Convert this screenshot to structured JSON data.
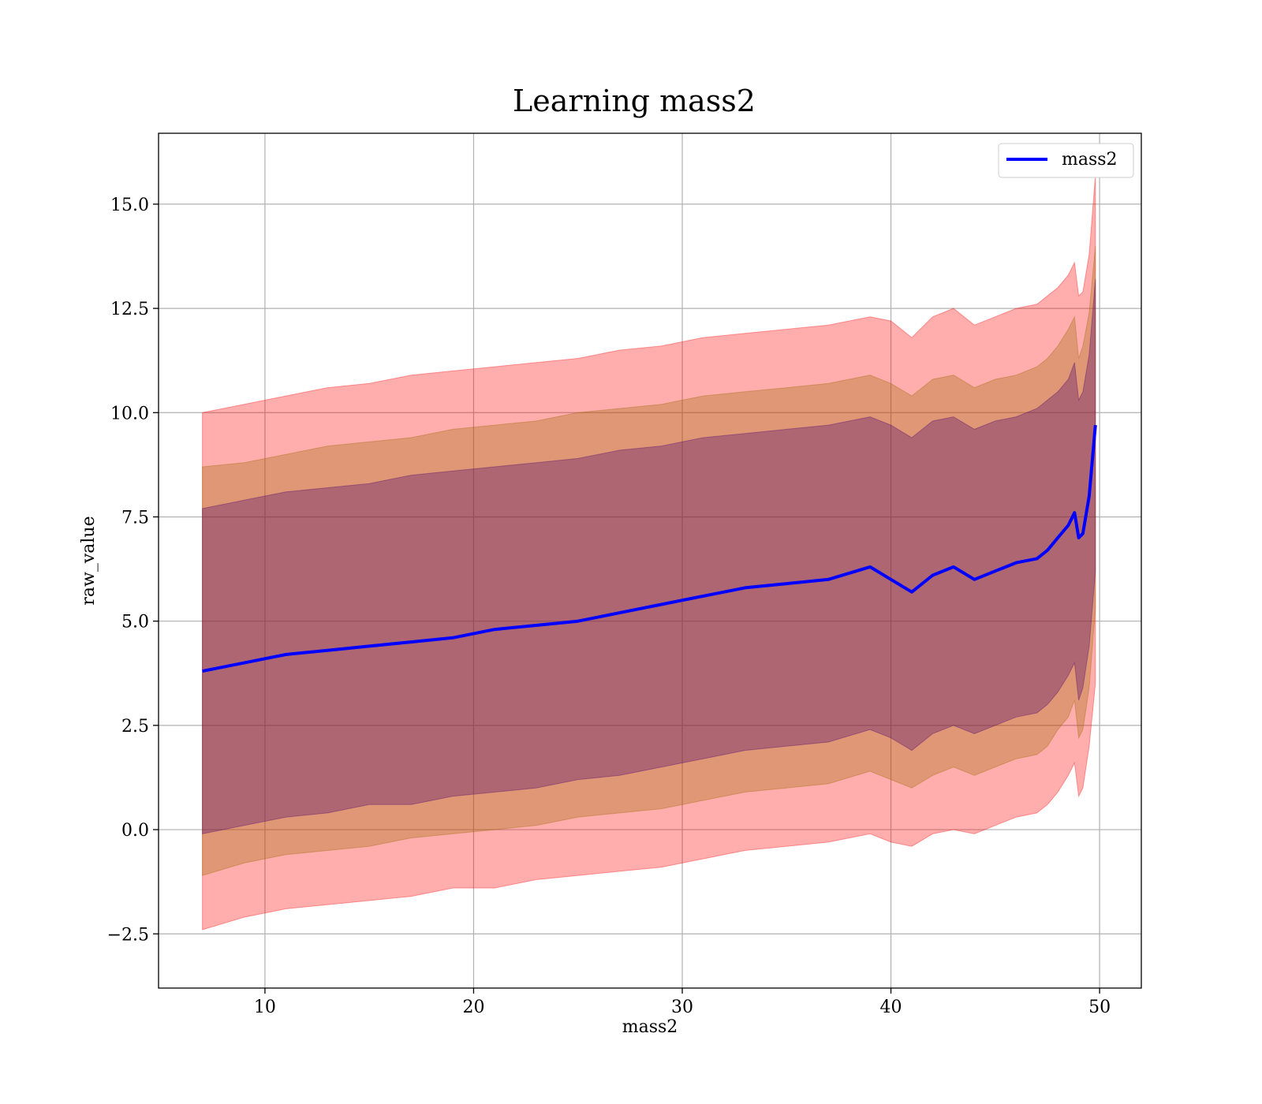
{
  "chart_data": {
    "type": "line",
    "title": "Learning mass2",
    "xlabel": "mass2",
    "ylabel": "raw_value",
    "xlim": [
      4.9,
      52.0
    ],
    "ylim": [
      -3.8,
      16.7
    ],
    "x_ticks": [
      10,
      20,
      30,
      40,
      50
    ],
    "x_tick_labels": [
      "10",
      "20",
      "30",
      "40",
      "50"
    ],
    "y_ticks": [
      -2.5,
      0.0,
      2.5,
      5.0,
      7.5,
      10.0,
      12.5,
      15.0
    ],
    "y_tick_labels": [
      "−2.5",
      "0.0",
      "2.5",
      "5.0",
      "7.5",
      "10.0",
      "12.5",
      "15.0"
    ],
    "grid": true,
    "legend": {
      "position": "upper right",
      "entries": [
        "mass2"
      ]
    },
    "colors": {
      "line": "#0000ff",
      "band_outer": "#ff0000",
      "band_middle": "#9a6a00",
      "band_inner": "#4a0070"
    },
    "x": [
      7,
      9,
      11,
      13,
      15,
      17,
      19,
      21,
      23,
      25,
      27,
      29,
      31,
      33,
      35,
      37,
      39,
      40,
      41,
      42,
      43,
      44,
      45,
      46,
      47,
      47.5,
      48,
      48.5,
      48.8,
      49.0,
      49.2,
      49.5,
      49.8
    ],
    "series": [
      {
        "name": "mass2",
        "values": [
          3.8,
          4.0,
          4.2,
          4.3,
          4.4,
          4.5,
          4.6,
          4.8,
          4.9,
          5.0,
          5.2,
          5.4,
          5.6,
          5.8,
          5.9,
          6.0,
          6.3,
          6.0,
          5.7,
          6.1,
          6.3,
          6.0,
          6.2,
          6.4,
          6.5,
          6.7,
          7.0,
          7.3,
          7.6,
          7.0,
          7.1,
          8.0,
          9.7
        ]
      }
    ],
    "bands": [
      {
        "level": "outer",
        "upper": [
          10.0,
          10.2,
          10.4,
          10.6,
          10.7,
          10.9,
          11.0,
          11.1,
          11.2,
          11.3,
          11.5,
          11.6,
          11.8,
          11.9,
          12.0,
          12.1,
          12.3,
          12.2,
          11.8,
          12.3,
          12.5,
          12.1,
          12.3,
          12.5,
          12.6,
          12.8,
          13.0,
          13.3,
          13.6,
          12.8,
          12.9,
          13.8,
          15.7
        ],
        "lower": [
          -2.4,
          -2.1,
          -1.9,
          -1.8,
          -1.7,
          -1.6,
          -1.4,
          -1.4,
          -1.2,
          -1.1,
          -1.0,
          -0.9,
          -0.7,
          -0.5,
          -0.4,
          -0.3,
          -0.1,
          -0.3,
          -0.4,
          -0.1,
          0.0,
          -0.1,
          0.1,
          0.3,
          0.4,
          0.6,
          0.9,
          1.3,
          1.6,
          0.8,
          1.0,
          2.0,
          3.5
        ]
      },
      {
        "level": "middle",
        "upper": [
          8.7,
          8.8,
          9.0,
          9.2,
          9.3,
          9.4,
          9.6,
          9.7,
          9.8,
          10.0,
          10.1,
          10.2,
          10.4,
          10.5,
          10.6,
          10.7,
          10.9,
          10.7,
          10.4,
          10.8,
          10.9,
          10.6,
          10.8,
          10.9,
          11.1,
          11.3,
          11.6,
          12.0,
          12.3,
          11.3,
          11.6,
          12.4,
          14.0
        ],
        "lower": [
          -1.1,
          -0.8,
          -0.6,
          -0.5,
          -0.4,
          -0.2,
          -0.1,
          0.0,
          0.1,
          0.3,
          0.4,
          0.5,
          0.7,
          0.9,
          1.0,
          1.1,
          1.4,
          1.2,
          1.0,
          1.3,
          1.5,
          1.3,
          1.5,
          1.7,
          1.8,
          2.0,
          2.4,
          2.7,
          3.1,
          2.2,
          2.4,
          3.4,
          5.3
        ]
      },
      {
        "level": "inner",
        "upper": [
          7.7,
          7.9,
          8.1,
          8.2,
          8.3,
          8.5,
          8.6,
          8.7,
          8.8,
          8.9,
          9.1,
          9.2,
          9.4,
          9.5,
          9.6,
          9.7,
          9.9,
          9.7,
          9.4,
          9.8,
          9.9,
          9.6,
          9.8,
          9.9,
          10.1,
          10.3,
          10.5,
          10.8,
          11.2,
          10.3,
          10.5,
          11.4,
          13.2
        ],
        "lower": [
          -0.1,
          0.1,
          0.3,
          0.4,
          0.6,
          0.6,
          0.8,
          0.9,
          1.0,
          1.2,
          1.3,
          1.5,
          1.7,
          1.9,
          2.0,
          2.1,
          2.4,
          2.2,
          1.9,
          2.3,
          2.5,
          2.3,
          2.5,
          2.7,
          2.8,
          3.0,
          3.3,
          3.7,
          4.0,
          3.1,
          3.4,
          4.4,
          6.2
        ]
      }
    ]
  }
}
